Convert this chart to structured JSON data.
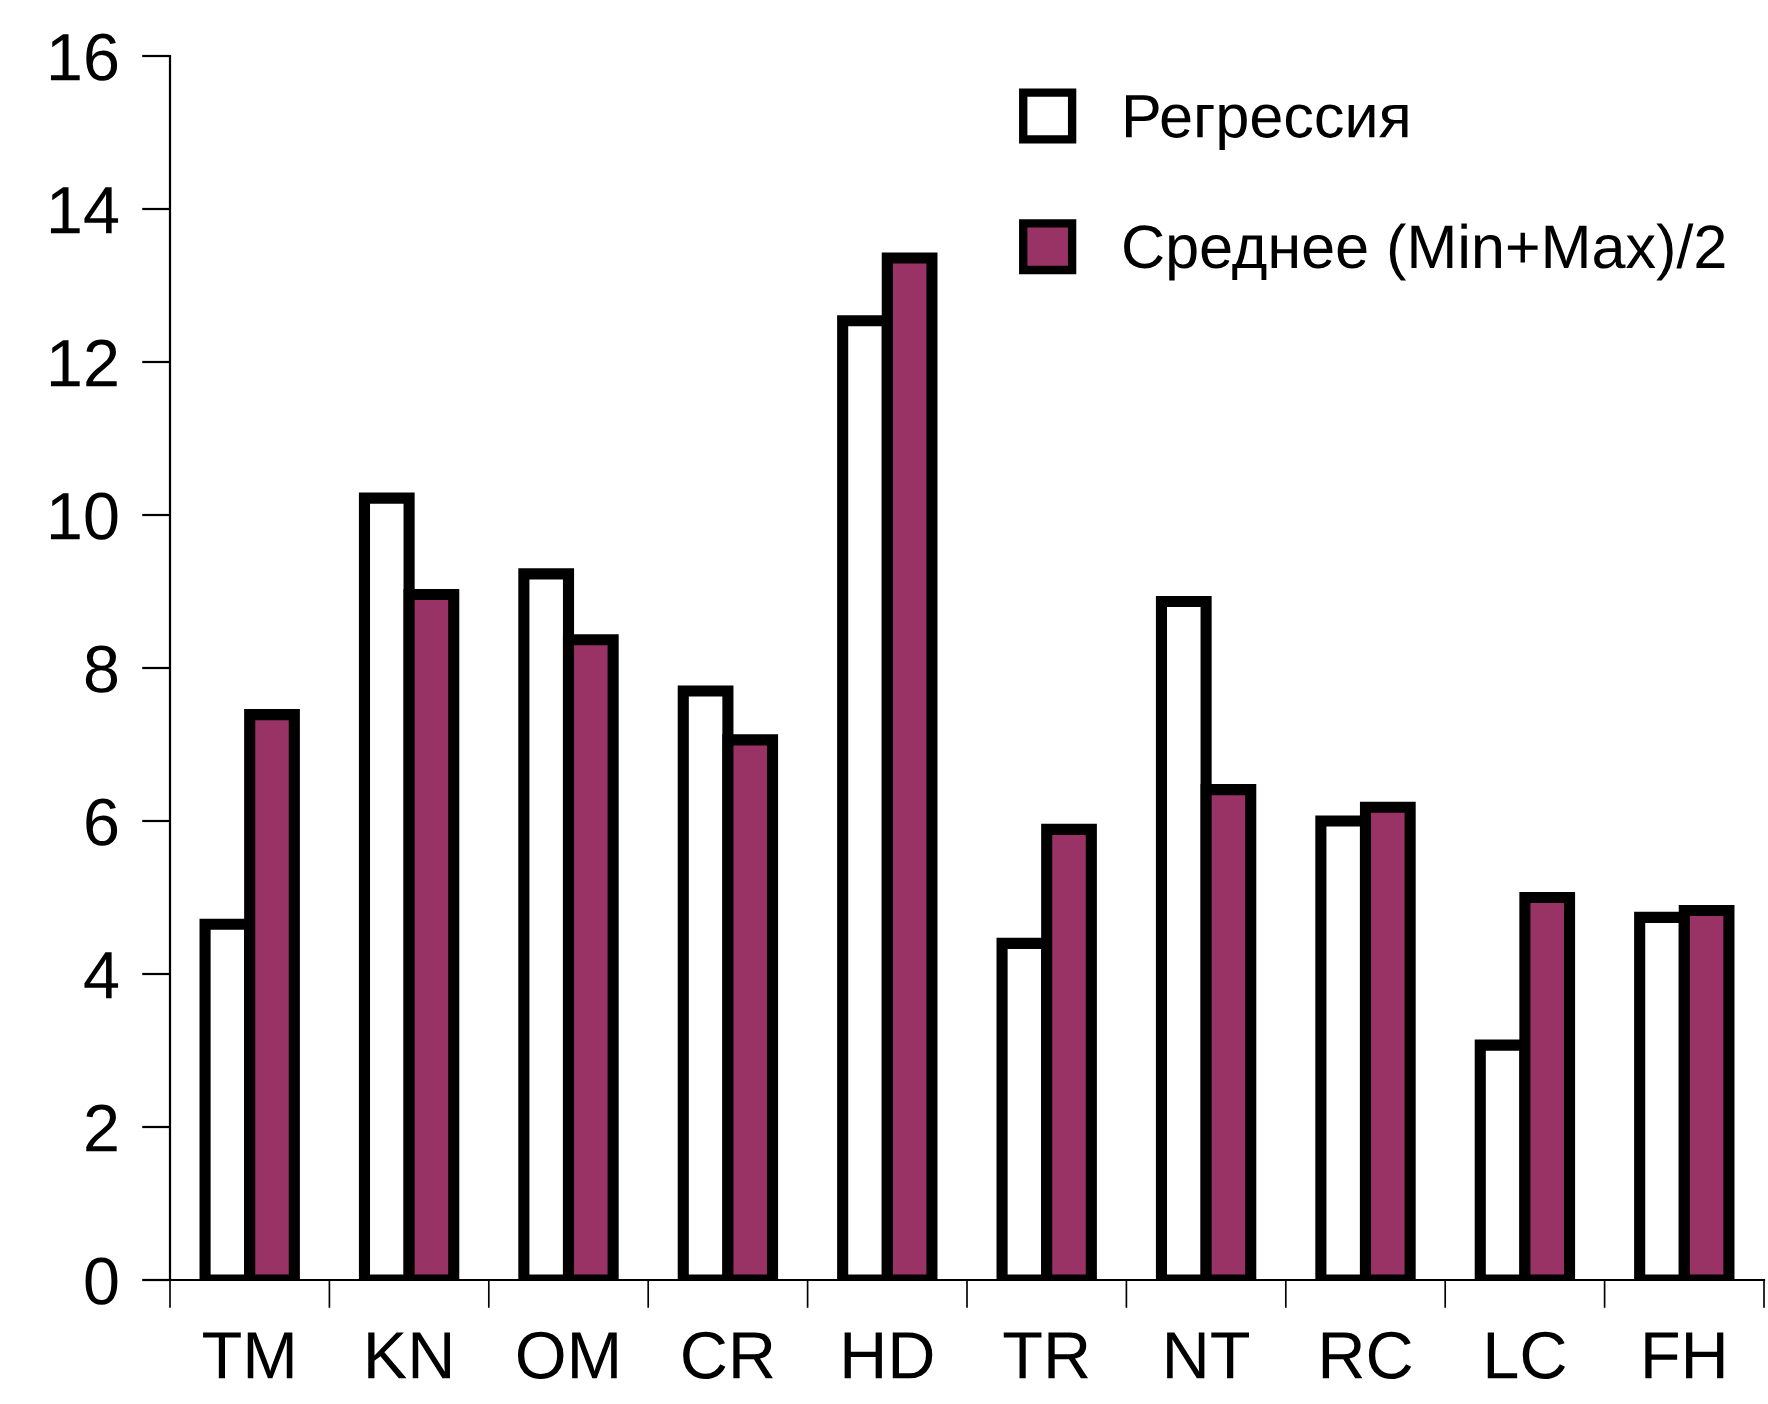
{
  "chart_data": {
    "type": "bar",
    "categories": [
      "TM",
      "KN",
      "OM",
      "CR",
      "HD",
      "TR",
      "NT",
      "RC",
      "LC",
      "FH"
    ],
    "series": [
      {
        "name": "Регрессия",
        "color": "#ffffff",
        "values": [
          4.65,
          10.22,
          9.23,
          7.7,
          12.54,
          4.4,
          8.87,
          6.0,
          3.07,
          4.74
        ]
      },
      {
        "name": "Среднее (Min+Max)/2",
        "color": "#993366",
        "values": [
          7.39,
          8.96,
          8.37,
          7.06,
          13.36,
          5.89,
          6.41,
          6.18,
          5.0,
          4.83
        ]
      }
    ],
    "ylim": [
      0,
      16
    ],
    "yticks": [
      0,
      2,
      4,
      6,
      8,
      10,
      12,
      14,
      16
    ],
    "grid": false,
    "legend": "top right"
  }
}
